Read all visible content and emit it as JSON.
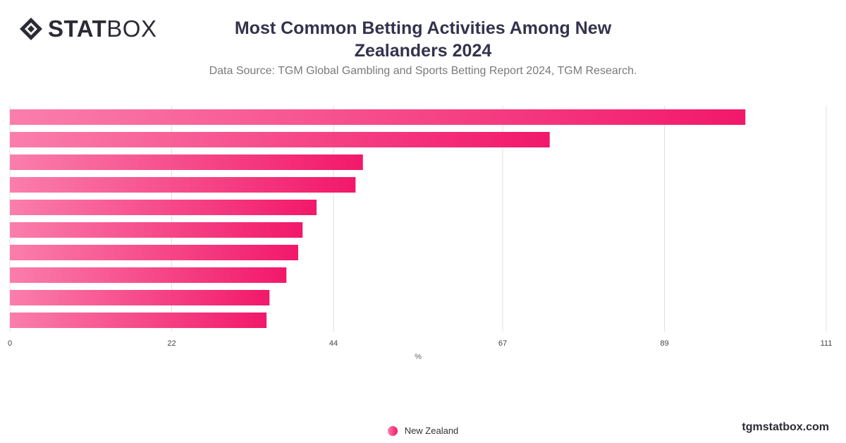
{
  "brand": {
    "logo_bold": "STAT",
    "logo_light": "BOX",
    "icon": "diamond-icon"
  },
  "header": {
    "title": "Most Common Betting Activities Among New Zealanders 2024",
    "subtitle": "Data Source: TGM Global Gambling and Sports Betting Report 2024, TGM Research."
  },
  "footer": {
    "site": "tgmstatbox.com"
  },
  "colors": {
    "bar_start": "#fa7eab",
    "bar_end": "#f2186a",
    "grid": "#e0e0e0"
  },
  "chart_data": {
    "type": "bar",
    "orientation": "horizontal",
    "title": "Most Common Betting Activities Among New Zealanders 2024",
    "xlabel": "%",
    "xlim": [
      0,
      111
    ],
    "xticks": [
      "0",
      "22",
      "44",
      "67",
      "89",
      "111"
    ],
    "grid": true,
    "legend_position": "bottom",
    "series": [
      {
        "name": "New Zealand",
        "values": [
          100,
          73.4,
          48,
          47,
          41.7,
          39.8,
          39.2,
          37.6,
          35.3,
          34.9
        ]
      }
    ]
  }
}
